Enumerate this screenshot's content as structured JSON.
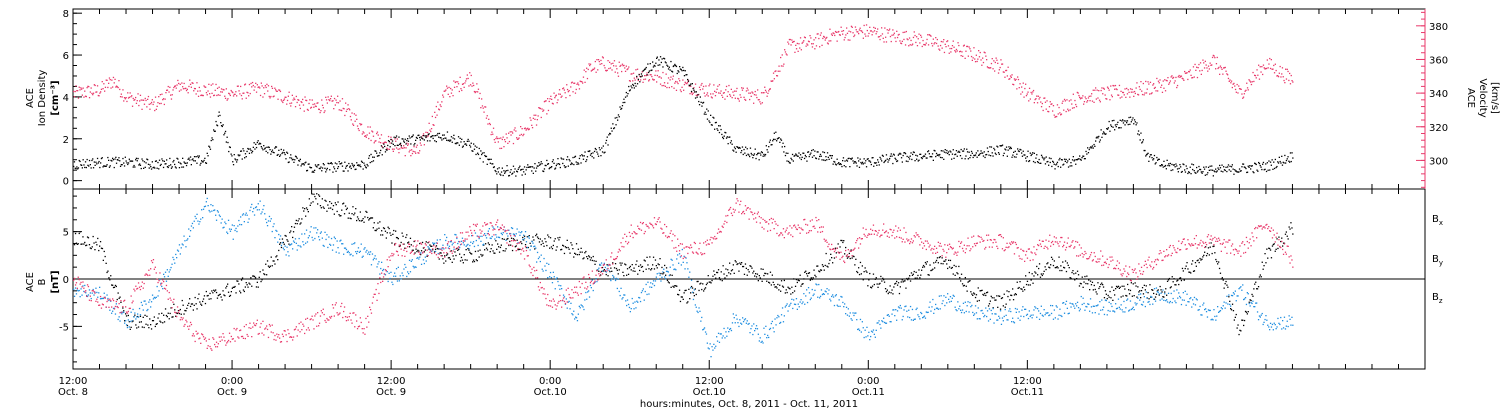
{
  "chart_data": [
    {
      "type": "scatter",
      "panel": "top",
      "left_axis": {
        "label_lines": [
          "ACE",
          "Ion Density",
          "[cm⁻³]"
        ],
        "ylim": [
          -0.4,
          8.2
        ],
        "ticks": [
          0,
          2,
          4,
          6,
          8
        ],
        "color": "#000000"
      },
      "right_axis": {
        "label_lines": [
          "ACE",
          "Velocity",
          "[km/s]"
        ],
        "ylim": [
          283,
          390
        ],
        "ticks": [
          300,
          320,
          340,
          360,
          380
        ],
        "color": "#e8386a"
      },
      "series": [
        {
          "color": "#000000",
          "axis": "left",
          "t": [
            0,
            2,
            4,
            6,
            8,
            10,
            11,
            12,
            14,
            16,
            18,
            20,
            22,
            24,
            26,
            28,
            30,
            32,
            34,
            36,
            38,
            40,
            42,
            44,
            46,
            48,
            50,
            52,
            53,
            54,
            56,
            58,
            60,
            62,
            64,
            66,
            68,
            70,
            72,
            74,
            76,
            78,
            80,
            81,
            82,
            84,
            86,
            88,
            90,
            92
          ],
          "values": [
            0.8,
            0.9,
            0.9,
            0.8,
            0.9,
            1.0,
            3.2,
            1.0,
            1.8,
            1.2,
            0.6,
            0.7,
            0.8,
            1.9,
            2.0,
            2.2,
            1.7,
            0.5,
            0.5,
            0.8,
            1.0,
            1.5,
            4.5,
            5.8,
            5.2,
            3.0,
            1.5,
            1.2,
            2.2,
            1.0,
            1.3,
            0.9,
            0.9,
            1.1,
            1.2,
            1.3,
            1.3,
            1.5,
            1.2,
            0.8,
            1.0,
            2.6,
            3.0,
            1.2,
            0.8,
            0.6,
            0.5,
            0.6,
            0.7,
            1.2
          ]
        },
        {
          "color": "#e8386a",
          "axis": "right",
          "t": [
            0,
            2,
            3,
            4,
            6,
            8,
            10,
            12,
            14,
            16,
            18,
            20,
            22,
            24,
            26,
            28,
            30,
            32,
            34,
            36,
            38,
            39,
            40,
            42,
            44,
            46,
            48,
            50,
            52,
            54,
            56,
            57,
            58,
            60,
            62,
            64,
            66,
            68,
            70,
            72,
            74,
            76,
            78,
            80,
            82,
            84,
            86,
            88,
            90,
            92
          ],
          "values": [
            340,
            342,
            348,
            338,
            333,
            345,
            342,
            340,
            343,
            338,
            332,
            335,
            318,
            310,
            305,
            340,
            350,
            310,
            318,
            335,
            345,
            355,
            358,
            352,
            350,
            345,
            342,
            340,
            338,
            368,
            371,
            374,
            376,
            377,
            374,
            372,
            368,
            363,
            356,
            340,
            330,
            338,
            340,
            342,
            345,
            350,
            360,
            340,
            358,
            348
          ]
        }
      ]
    },
    {
      "type": "scatter",
      "panel": "bottom",
      "left_axis": {
        "label_lines": [
          "ACE",
          "B",
          "[nT]"
        ],
        "ylim": [
          -9.5,
          9.5
        ],
        "ticks": [
          -5,
          0,
          5
        ],
        "color": "#000000"
      },
      "zero_line": 0,
      "series": [
        {
          "name": "B",
          "sub": "x",
          "color": "#000000",
          "t": [
            0,
            2,
            4,
            6,
            8,
            10,
            12,
            14,
            16,
            18,
            20,
            22,
            24,
            26,
            28,
            30,
            32,
            34,
            36,
            38,
            40,
            42,
            44,
            46,
            48,
            50,
            52,
            54,
            56,
            58,
            60,
            62,
            64,
            66,
            68,
            70,
            72,
            74,
            76,
            78,
            80,
            82,
            84,
            86,
            88,
            90,
            92
          ],
          "values": [
            4.5,
            3.5,
            -4.5,
            -4.5,
            -3.0,
            -2.0,
            -1.0,
            0.0,
            4.0,
            8.5,
            7.5,
            6.5,
            4.5,
            3.5,
            2.5,
            2.5,
            3.5,
            4.0,
            4.0,
            3.0,
            1.0,
            1.0,
            2.0,
            -2.0,
            0.0,
            1.5,
            0.5,
            -1.0,
            1.0,
            3.5,
            0.0,
            -1.0,
            1.0,
            2.0,
            -1.5,
            -2.5,
            0.0,
            2.0,
            0.0,
            -1.5,
            -1.0,
            -1.5,
            1.0,
            3.5,
            -5.5,
            2.5,
            5.5
          ]
        },
        {
          "name": "B",
          "sub": "y",
          "color": "#1f8ee0",
          "t": [
            0,
            2,
            4,
            6,
            8,
            10,
            12,
            14,
            16,
            18,
            20,
            22,
            24,
            26,
            28,
            30,
            32,
            34,
            36,
            38,
            40,
            42,
            44,
            46,
            48,
            50,
            52,
            54,
            56,
            58,
            60,
            62,
            64,
            66,
            68,
            70,
            72,
            74,
            76,
            78,
            80,
            82,
            84,
            86,
            88,
            90,
            92
          ],
          "values": [
            -1.0,
            -1.5,
            -4.5,
            -2.0,
            3.0,
            8.0,
            5.0,
            8.0,
            3.0,
            5.0,
            3.5,
            3.0,
            0.0,
            2.0,
            4.0,
            4.0,
            5.0,
            4.5,
            0.5,
            -4.0,
            2.0,
            -3.0,
            0.0,
            2.5,
            -7.5,
            -4.0,
            -6.0,
            -3.0,
            -1.0,
            -2.5,
            -6.0,
            -3.5,
            -3.5,
            -2.0,
            -3.5,
            -4.0,
            -3.5,
            -3.5,
            -2.5,
            -3.0,
            -2.5,
            -1.5,
            -2.0,
            -4.0,
            -1.0,
            -4.5,
            -4.5
          ]
        },
        {
          "name": "B",
          "sub": "z",
          "color": "#e8386a",
          "t": [
            0,
            2,
            4,
            6,
            8,
            10,
            12,
            14,
            16,
            18,
            20,
            22,
            24,
            26,
            28,
            30,
            32,
            34,
            36,
            38,
            40,
            42,
            44,
            46,
            48,
            50,
            52,
            54,
            56,
            58,
            60,
            62,
            64,
            66,
            68,
            70,
            72,
            74,
            76,
            78,
            80,
            82,
            84,
            86,
            88,
            90,
            92
          ],
          "values": [
            0.0,
            -2.5,
            -3.0,
            1.5,
            -4.0,
            -7.0,
            -6.0,
            -5.0,
            -6.0,
            -4.5,
            -3.0,
            -5.0,
            3.0,
            3.5,
            3.0,
            5.0,
            5.5,
            3.0,
            -3.0,
            -1.0,
            1.0,
            5.0,
            6.0,
            3.0,
            3.5,
            8.0,
            6.0,
            5.0,
            6.0,
            2.0,
            5.5,
            5.0,
            4.0,
            3.0,
            4.0,
            4.0,
            2.5,
            4.5,
            3.0,
            2.0,
            0.5,
            2.5,
            4.0,
            4.0,
            3.0,
            6.0,
            2.0
          ]
        }
      ],
      "legend": [
        {
          "label": "B",
          "sub": "x",
          "color": "#000000"
        },
        {
          "label": "B",
          "sub": "y",
          "color": "#1f8ee0"
        },
        {
          "label": "B",
          "sub": "z",
          "color": "#e8386a"
        }
      ]
    }
  ],
  "time_axis": {
    "xlim": [
      0,
      102
    ],
    "major": [
      {
        "t": 0,
        "time": "12:00",
        "date": "Oct. 8"
      },
      {
        "t": 12,
        "time": "0:00",
        "date": "Oct. 9"
      },
      {
        "t": 24,
        "time": "12:00",
        "date": "Oct. 9"
      },
      {
        "t": 36,
        "time": "0:00",
        "date": "Oct.10"
      },
      {
        "t": 48,
        "time": "12:00",
        "date": "Oct.10"
      },
      {
        "t": 60,
        "time": "0:00",
        "date": "Oct.11"
      },
      {
        "t": 72,
        "time": "12:00",
        "date": "Oct.11"
      }
    ],
    "minor_step": 2,
    "title": "hours:minutes, Oct.  8, 2011 - Oct. 11, 2011"
  }
}
